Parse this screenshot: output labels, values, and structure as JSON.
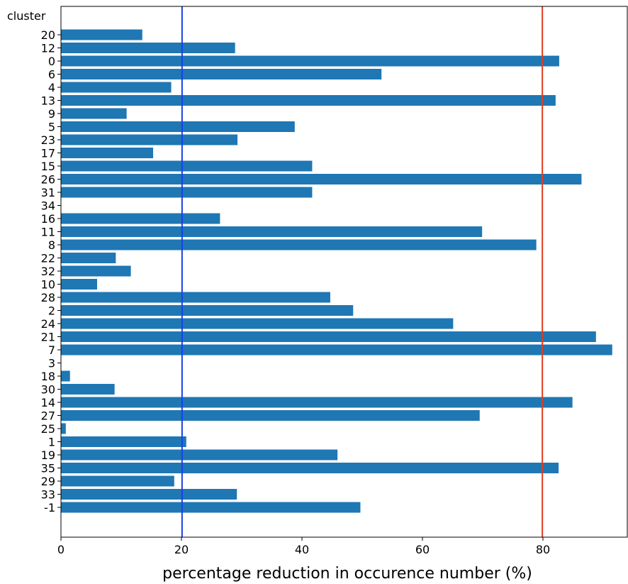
{
  "chart_data": {
    "type": "bar",
    "orientation": "horizontal",
    "ylabel": "cluster",
    "xlabel": "percentage reduction in occurence number (%)",
    "xlim": [
      0,
      94
    ],
    "xticks": [
      0,
      20,
      40,
      60,
      80
    ],
    "grid": false,
    "bar_color": "#1f77b4",
    "categories": [
      "20",
      "12",
      "0",
      "6",
      "4",
      "13",
      "9",
      "5",
      "23",
      "17",
      "15",
      "26",
      "31",
      "34",
      "16",
      "11",
      "8",
      "22",
      "32",
      "10",
      "28",
      "2",
      "24",
      "21",
      "7",
      "3",
      "18",
      "30",
      "14",
      "27",
      "25",
      "1",
      "19",
      "35",
      "29",
      "33",
      "-1"
    ],
    "values": [
      13.5,
      28.9,
      82.7,
      53.2,
      18.3,
      82.1,
      10.9,
      38.8,
      29.3,
      15.3,
      41.7,
      86.4,
      41.7,
      0,
      26.4,
      69.9,
      78.9,
      9.1,
      11.6,
      6.0,
      44.7,
      48.5,
      65.1,
      88.8,
      91.5,
      0,
      1.5,
      8.9,
      84.9,
      69.5,
      0.8,
      20.8,
      45.9,
      82.6,
      18.8,
      29.2,
      49.7
    ],
    "reference_lines": [
      {
        "x": 20.1,
        "color": "#1a3fe8"
      },
      {
        "x": 79.9,
        "color": "#e03c1f"
      }
    ]
  }
}
